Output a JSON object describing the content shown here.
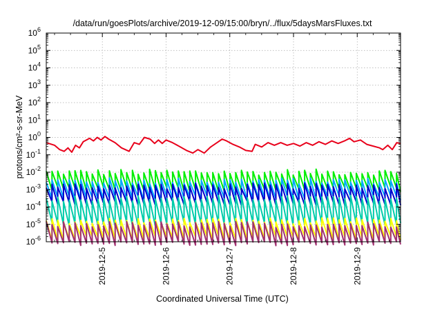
{
  "chart_data": {
    "type": "line",
    "title": "/data/run/goesPlots/archive/2019-12-09/15:00/bryn/../flux/5daysMarsFluxes.txt",
    "xlabel": "Coordinated Universal Time (UTC)",
    "ylabel": "protons/cm²-s-sr-MeV",
    "x_unit": "days since 2019-12-04 00:00 UTC",
    "xlim": [
      0.12,
      5.68
    ],
    "y_scale": "log",
    "ylim_exponent": [
      -6,
      6
    ],
    "y_ticks": [
      {
        "base": "10",
        "exp": "-6"
      },
      {
        "base": "10",
        "exp": "-5"
      },
      {
        "base": "10",
        "exp": "-4"
      },
      {
        "base": "10",
        "exp": "-3"
      },
      {
        "base": "10",
        "exp": "-2"
      },
      {
        "base": "10",
        "exp": "-1"
      },
      {
        "base": "10",
        "exp": "0"
      },
      {
        "base": "10",
        "exp": "1"
      },
      {
        "base": "10",
        "exp": "2"
      },
      {
        "base": "10",
        "exp": "3"
      },
      {
        "base": "10",
        "exp": "4"
      },
      {
        "base": "10",
        "exp": "5"
      },
      {
        "base": "10",
        "exp": "6"
      }
    ],
    "x_ticks": [
      {
        "value": 1,
        "label": "2019-12-5"
      },
      {
        "value": 2,
        "label": "2019-12-6"
      },
      {
        "value": 3,
        "label": "2019-12-7"
      },
      {
        "value": 4,
        "label": "2019-12-8"
      },
      {
        "value": 5,
        "label": "2019-12-9"
      }
    ],
    "grid": true,
    "legend": "none",
    "series": [
      {
        "color": "#e8001a",
        "points": [
          [
            0.12,
            -0.3
          ],
          [
            0.25,
            -0.45
          ],
          [
            0.33,
            -0.7
          ],
          [
            0.4,
            -0.8
          ],
          [
            0.46,
            -0.6
          ],
          [
            0.52,
            -0.85
          ],
          [
            0.58,
            -0.45
          ],
          [
            0.64,
            -0.6
          ],
          [
            0.7,
            -0.25
          ],
          [
            0.8,
            -0.05
          ],
          [
            0.86,
            -0.2
          ],
          [
            0.92,
            0.0
          ],
          [
            0.98,
            -0.15
          ],
          [
            1.04,
            0.05
          ],
          [
            1.1,
            -0.1
          ],
          [
            1.2,
            -0.3
          ],
          [
            1.3,
            -0.6
          ],
          [
            1.42,
            -0.8
          ],
          [
            1.5,
            -0.3
          ],
          [
            1.58,
            -0.4
          ],
          [
            1.66,
            0.0
          ],
          [
            1.75,
            -0.1
          ],
          [
            1.82,
            -0.35
          ],
          [
            1.88,
            -0.15
          ],
          [
            1.94,
            -0.35
          ],
          [
            2.0,
            -0.15
          ],
          [
            2.1,
            -0.3
          ],
          [
            2.2,
            -0.5
          ],
          [
            2.32,
            -0.75
          ],
          [
            2.42,
            -0.9
          ],
          [
            2.5,
            -0.7
          ],
          [
            2.6,
            -0.9
          ],
          [
            2.7,
            -0.55
          ],
          [
            2.8,
            -0.3
          ],
          [
            2.88,
            -0.1
          ],
          [
            2.95,
            -0.2
          ],
          [
            3.05,
            -0.4
          ],
          [
            3.15,
            -0.55
          ],
          [
            3.25,
            -0.75
          ],
          [
            3.35,
            -0.8
          ],
          [
            3.4,
            -0.4
          ],
          [
            3.5,
            -0.55
          ],
          [
            3.6,
            -0.3
          ],
          [
            3.7,
            -0.45
          ],
          [
            3.8,
            -0.3
          ],
          [
            3.9,
            -0.45
          ],
          [
            4.0,
            -0.35
          ],
          [
            4.1,
            -0.5
          ],
          [
            4.2,
            -0.3
          ],
          [
            4.3,
            -0.45
          ],
          [
            4.4,
            -0.25
          ],
          [
            4.5,
            -0.4
          ],
          [
            4.6,
            -0.2
          ],
          [
            4.7,
            -0.35
          ],
          [
            4.8,
            -0.2
          ],
          [
            4.88,
            -0.05
          ],
          [
            4.95,
            -0.25
          ],
          [
            5.05,
            -0.15
          ],
          [
            5.15,
            -0.4
          ],
          [
            5.25,
            -0.5
          ],
          [
            5.35,
            -0.6
          ],
          [
            5.4,
            -0.7
          ],
          [
            5.48,
            -0.45
          ],
          [
            5.55,
            -0.7
          ],
          [
            5.62,
            -0.3
          ],
          [
            5.68,
            -0.35
          ]
        ]
      },
      {
        "color": "#00ee00",
        "base_exp": -2.0,
        "amp": 1.0
      },
      {
        "color": "#00aaff",
        "base_exp": -2.5,
        "amp": 1.0
      },
      {
        "color": "#0000cc",
        "base_exp": -2.8,
        "amp": 1.0
      },
      {
        "color": "#00ccaa",
        "base_exp": -3.5,
        "amp": 1.5
      },
      {
        "color": "#ffff00",
        "base_exp": -4.8,
        "amp": 1.0
      },
      {
        "color": "#a03070",
        "base_exp": -5.0,
        "amp": 1.1
      }
    ]
  }
}
